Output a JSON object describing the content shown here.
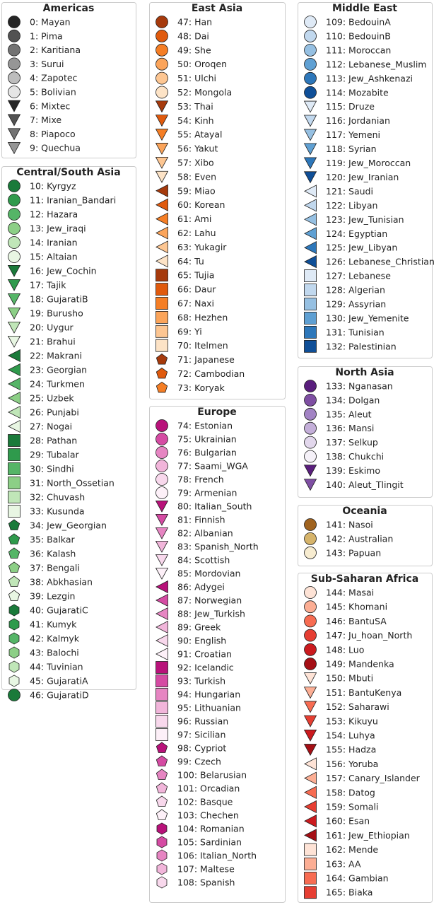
{
  "chart_data": {
    "type": "legend",
    "marker_cycle": [
      "circle",
      "triangle-down",
      "triangle-left",
      "square",
      "pentagon",
      "hexagon"
    ],
    "groups": [
      {
        "title": "Americas",
        "column": 0,
        "colors": [
          "#252525",
          "#525252",
          "#737373",
          "#969696",
          "#bdbdbd",
          "#e5e5e5",
          "#252525",
          "#525252",
          "#737373",
          "#969696"
        ],
        "items": [
          "0: Mayan",
          "1: Pima",
          "2: Karitiana",
          "3: Surui",
          "4: Zapotec",
          "5: Bolivian",
          "6: Mixtec",
          "7: Mixe",
          "8: Piapoco",
          "9: Quechua"
        ],
        "markers": [
          "circle",
          "circle",
          "circle",
          "circle",
          "circle",
          "circle",
          "triangle-down",
          "triangle-down",
          "triangle-down",
          "triangle-down"
        ]
      },
      {
        "title": "Central/South Asia",
        "column": 0,
        "colors": [
          "#1a7a3a",
          "#2f9a4c",
          "#55b567",
          "#8ccf86",
          "#c0e6b8",
          "#e8f6e3"
        ],
        "items": [
          "10: Kyrgyz",
          "11: Iranian_Bandari",
          "12: Hazara",
          "13: Jew_iraqi",
          "14: Iranian",
          "15: Altaian",
          "16: Jew_Cochin",
          "17: Tajik",
          "18: GujaratiB",
          "19: Burusho",
          "20: Uygur",
          "21: Brahui",
          "22: Makrani",
          "23: Georgian",
          "24: Turkmen",
          "25: Uzbek",
          "26: Punjabi",
          "27: Nogai",
          "28: Pathan",
          "29: Tubalar",
          "30: Sindhi",
          "31: North_Ossetian",
          "32: Chuvash",
          "33: Kusunda",
          "34: Jew_Georgian",
          "35: Balkar",
          "36: Kalash",
          "37: Bengali",
          "38: Abkhasian",
          "39: Lezgin",
          "40: GujaratiC",
          "41: Kumyk",
          "42: Kalmyk",
          "43: Balochi",
          "44: Tuvinian",
          "45: GujaratiA",
          "46: GujaratiD"
        ]
      },
      {
        "title": "East Asia",
        "column": 1,
        "colors": [
          "#a63a0c",
          "#e05a0d",
          "#f57e25",
          "#fba45a",
          "#fdc692",
          "#fde3c6"
        ],
        "items": [
          "47: Han",
          "48: Dai",
          "49: She",
          "50: Oroqen",
          "51: Ulchi",
          "52: Mongola",
          "53: Thai",
          "54: Kinh",
          "55: Atayal",
          "56: Yakut",
          "57: Xibo",
          "58: Even",
          "59: Miao",
          "60: Korean",
          "61: Ami",
          "62: Lahu",
          "63: Yukagir",
          "64: Tu",
          "65: Tujia",
          "66: Daur",
          "67: Naxi",
          "68: Hezhen",
          "69: Yi",
          "70: Itelmen",
          "71: Japanese",
          "72: Cambodian",
          "73: Koryak"
        ]
      },
      {
        "title": "Europe",
        "column": 1,
        "colors": [
          "#b8127a",
          "#d54ba3",
          "#e685c2",
          "#f1b5da",
          "#f8d8ec",
          "#fdf0f8"
        ],
        "items": [
          "74: Estonian",
          "75: Ukrainian",
          "76: Bulgarian",
          "77: Saami_WGA",
          "78: French",
          "79: Armenian",
          "80: Italian_South",
          "81: Finnish",
          "82: Albanian",
          "83: Spanish_North",
          "84: Scottish",
          "85: Mordovian",
          "86: Adygei",
          "87: Norwegian",
          "88: Jew_Turkish",
          "89: Greek",
          "90: English",
          "91: Croatian",
          "92: Icelandic",
          "93: Turkish",
          "94: Hungarian",
          "95: Lithuanian",
          "96: Russian",
          "97: Sicilian",
          "98: Cypriot",
          "99: Czech",
          "100: Belarusian",
          "101: Orcadian",
          "102: Basque",
          "103: Chechen",
          "104: Romanian",
          "105: Sardinian",
          "106: Italian_North",
          "107: Maltese",
          "108: Spanish"
        ]
      },
      {
        "title": "Middle East",
        "column": 2,
        "colors": [
          "#dfeaf6",
          "#c1d8ee",
          "#96c0e2",
          "#5fa0d3",
          "#2d77ba",
          "#0f4f98"
        ],
        "items": [
          "109: BedouinA",
          "110: BedouinB",
          "111: Moroccan",
          "112: Lebanese_Muslim",
          "113: Jew_Ashkenazi",
          "114: Mozabite",
          "115: Druze",
          "116: Jordanian",
          "117: Yemeni",
          "118: Syrian",
          "119: Jew_Moroccan",
          "120: Jew_Iranian",
          "121: Saudi",
          "122: Libyan",
          "123: Jew_Tunisian",
          "124: Egyptian",
          "125: Jew_Libyan",
          "126: Lebanese_Christian",
          "127: Lebanese",
          "128: Algerian",
          "129: Assyrian",
          "130: Jew_Yemenite",
          "131: Tunisian",
          "132: Palestinian"
        ]
      },
      {
        "title": "North Asia",
        "column": 2,
        "colors": [
          "#5a1e7d",
          "#7f4fa3",
          "#a283c4",
          "#c4afd9",
          "#e2d7ec",
          "#f5f1f8",
          "#5a1e7d",
          "#7f4fa3"
        ],
        "items": [
          "133: Nganasan",
          "134: Dolgan",
          "135: Aleut",
          "136: Mansi",
          "137: Selkup",
          "138: Chukchi",
          "139: Eskimo",
          "140: Aleut_Tlingit"
        ],
        "markers": [
          "circle",
          "circle",
          "circle",
          "circle",
          "circle",
          "circle",
          "triangle-down",
          "triangle-down"
        ]
      },
      {
        "title": "Oceania",
        "column": 2,
        "colors": [
          "#a0631f",
          "#d6b46b",
          "#f7ecd0"
        ],
        "items": [
          "141: Nasoi",
          "142: Australian",
          "143: Papuan"
        ],
        "markers": [
          "circle",
          "circle",
          "circle"
        ]
      },
      {
        "title": "Sub-Saharan Africa",
        "column": 2,
        "colors": [
          "#fee3d6",
          "#fcae94",
          "#f76c52",
          "#e63e32",
          "#cb1a1e",
          "#a50f15"
        ],
        "items": [
          "144: Masai",
          "145: Khomani",
          "146: BantuSA",
          "147: Ju_hoan_North",
          "148: Luo",
          "149: Mandenka",
          "150: Mbuti",
          "151: BantuKenya",
          "152: Saharawi",
          "153: Kikuyu",
          "154: Luhya",
          "155: Hadza",
          "156: Yoruba",
          "157: Canary_Islander",
          "158: Datog",
          "159: Somali",
          "160: Esan",
          "161: Jew_Ethiopian",
          "162: Mende",
          "163: AA",
          "164: Gambian",
          "165: Biaka"
        ]
      }
    ]
  }
}
